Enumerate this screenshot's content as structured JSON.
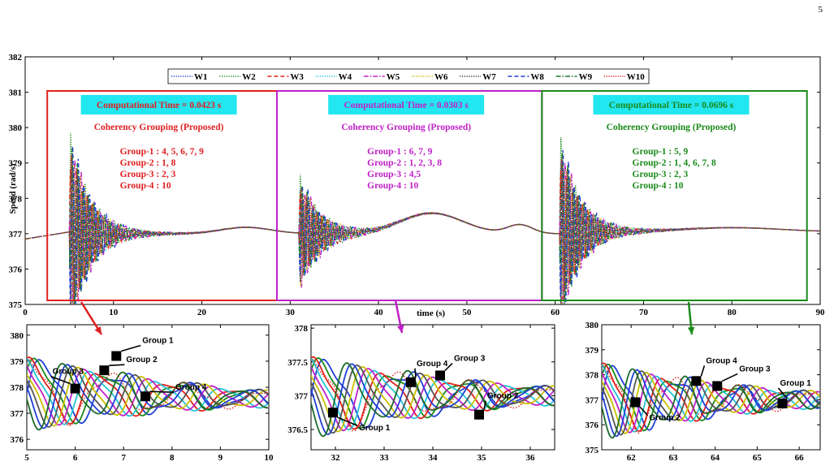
{
  "page_number": "5",
  "chart_data": [
    {
      "type": "line",
      "id": "main",
      "xlabel": "time (s)",
      "ylabel": "Speed (rad/s)",
      "xlim": [
        0,
        90
      ],
      "ylim": [
        375,
        382
      ],
      "xticks": [
        0,
        10,
        20,
        30,
        40,
        50,
        60,
        70,
        80,
        90
      ],
      "yticks": [
        375,
        376,
        377,
        378,
        379,
        380,
        381,
        382
      ],
      "legend": {
        "placement": "top",
        "entries": [
          "W1",
          "W2",
          "W3",
          "W4",
          "W5",
          "W6",
          "W7",
          "W8",
          "W9",
          "W10"
        ]
      },
      "series_colors": [
        "#1f3fd6",
        "#1a8a1a",
        "#e0201a",
        "#22c4d8",
        "#c020c8",
        "#c9c000",
        "#333333",
        "#1f3fd6",
        "#1a7a2a",
        "#e0201a"
      ],
      "series_styles": [
        "dotted",
        "dotted",
        "dashed",
        "dotted",
        "dashdot",
        "dotted",
        "dotted",
        "dashed",
        "dashdot",
        "dotted"
      ],
      "disturbances": [
        5,
        31,
        60.5
      ],
      "regions": [
        {
          "x_range": [
            2.5,
            28.5
          ],
          "color": "#e02020",
          "time_label": "Computational Time = 0.0423 s",
          "method_label": "Coherency Grouping (Proposed)",
          "groups": [
            "Group-1 : 4, 5, 6, 7, 9",
            "Group-2 : 1, 8",
            "Group-3 : 2, 3",
            "Group-4 : 10"
          ]
        },
        {
          "x_range": [
            28.5,
            58.5
          ],
          "color": "#c020c8",
          "time_label": "Computational Time = 0.0303 s",
          "method_label": "Coherency Grouping (Proposed)",
          "groups": [
            "Group-1 : 6, 7, 9",
            "Group-2 : 1, 2, 3, 8",
            "Group-3 : 4,5",
            "Group-4 : 10"
          ]
        },
        {
          "x_range": [
            58.5,
            88.5
          ],
          "color": "#1a8a1a",
          "time_label": "Computational Time = 0.0696 s",
          "method_label": "Coherency Grouping (Proposed)",
          "groups": [
            "Group-1 : 5, 9",
            "Group-2 : 1, 4, 6, 7, 8",
            "Group-3 : 2, 3",
            "Group-4 : 10"
          ]
        }
      ]
    },
    {
      "type": "line",
      "id": "zoom1",
      "xlim": [
        5,
        10
      ],
      "ylim": [
        375.6,
        380.4
      ],
      "xticks": [
        5,
        6,
        7,
        8,
        9,
        10
      ],
      "yticks": [
        376,
        377,
        378,
        379,
        380
      ],
      "annotations": [
        {
          "label": "Group 3",
          "x": 6.0,
          "y": 377.95
        },
        {
          "label": "Group 1",
          "x": 6.85,
          "y": 379.2
        },
        {
          "label": "Group 2",
          "x": 6.6,
          "y": 378.65
        },
        {
          "label": "Group 4",
          "x": 7.45,
          "y": 377.65
        }
      ]
    },
    {
      "type": "line",
      "id": "zoom2",
      "xlim": [
        31.5,
        36.5
      ],
      "ylim": [
        376.2,
        378.05
      ],
      "xticks": [
        32,
        33,
        34,
        35,
        36
      ],
      "yticks": [
        376.5,
        377,
        377.5,
        378
      ],
      "annotations": [
        {
          "label": "Group 4",
          "x": 33.55,
          "y": 377.2
        },
        {
          "label": "Group 3",
          "x": 34.15,
          "y": 377.3
        },
        {
          "label": "Group 2",
          "x": 34.95,
          "y": 376.72
        },
        {
          "label": "Group 1",
          "x": 31.95,
          "y": 376.75
        }
      ]
    },
    {
      "type": "line",
      "id": "zoom3",
      "xlim": [
        61.3,
        66.5
      ],
      "ylim": [
        375,
        380
      ],
      "xticks": [
        62,
        63,
        64,
        65,
        66
      ],
      "yticks": [
        375,
        376,
        377,
        378,
        379,
        380
      ],
      "annotations": [
        {
          "label": "Group 4",
          "x": 63.55,
          "y": 377.75
        },
        {
          "label": "Group 3",
          "x": 64.05,
          "y": 377.55
        },
        {
          "label": "Group 1",
          "x": 65.6,
          "y": 376.85
        },
        {
          "label": "Group 2",
          "x": 62.1,
          "y": 376.9
        }
      ]
    }
  ]
}
